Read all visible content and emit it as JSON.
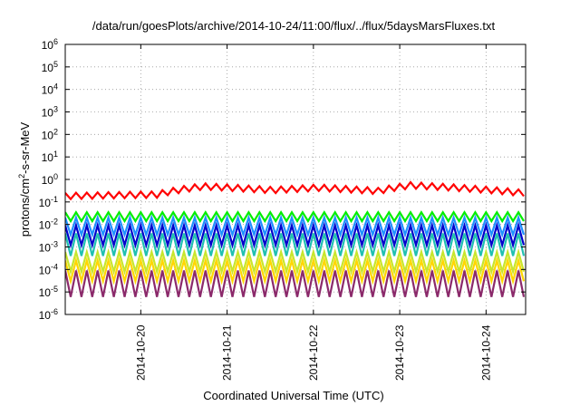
{
  "chart_data": {
    "type": "line",
    "title": "/data/run/goesPlots/archive/2014-10-24/11:00/flux/../flux/5daysMarsFluxes.txt",
    "xlabel": "Coordinated Universal Time (UTC)",
    "ylabel": {
      "prefix": "protons/cm",
      "sup": "2",
      "suffix": "-s-sr-MeV"
    },
    "y_scale": "log",
    "y_range_exp": [
      -6,
      6
    ],
    "y_ticks": [
      {
        "base": "10",
        "exp": "6",
        "e": 6
      },
      {
        "base": "10",
        "exp": "5",
        "e": 5
      },
      {
        "base": "10",
        "exp": "4",
        "e": 4
      },
      {
        "base": "10",
        "exp": "3",
        "e": 3
      },
      {
        "base": "10",
        "exp": "2",
        "e": 2
      },
      {
        "base": "10",
        "exp": "1",
        "e": 1
      },
      {
        "base": "10",
        "exp": "0",
        "e": 0
      },
      {
        "base": "10",
        "exp": "-1",
        "e": -1
      },
      {
        "base": "10",
        "exp": "-2",
        "e": -2
      },
      {
        "base": "10",
        "exp": "-3",
        "e": -3
      },
      {
        "base": "10",
        "exp": "-4",
        "e": -4
      },
      {
        "base": "10",
        "exp": "-5",
        "e": -5
      },
      {
        "base": "10",
        "exp": "-6",
        "e": -6
      }
    ],
    "x_range_days": [
      "2014-10-19T03:00",
      "2014-10-24T11:00"
    ],
    "x_ticks": [
      {
        "label": "2014-10-20",
        "date": "2014-10-20T00:00"
      },
      {
        "label": "2014-10-21",
        "date": "2014-10-21T00:00"
      },
      {
        "label": "2014-10-22",
        "date": "2014-10-22T00:00"
      },
      {
        "label": "2014-10-23",
        "date": "2014-10-23T00:00"
      },
      {
        "label": "2014-10-24",
        "date": "2014-10-24T00:00"
      }
    ],
    "grid": true,
    "cycle_hours": 3,
    "series": [
      {
        "color": "#ff0000",
        "width": 2.2,
        "low": 0.22,
        "high": 0.42,
        "trend": [
          [
            0,
            0.3
          ],
          [
            0.2,
            0.35
          ],
          [
            0.3,
            0.8
          ],
          [
            0.45,
            0.55
          ],
          [
            0.55,
            0.7
          ],
          [
            0.68,
            0.5
          ],
          [
            0.75,
            0.9
          ],
          [
            0.9,
            0.6
          ],
          [
            1,
            0.4
          ]
        ]
      },
      {
        "color": "#00ee00",
        "width": 2.2,
        "low": 0.014,
        "high": 0.035
      },
      {
        "color": "#1e90ff",
        "width": 2.2,
        "low": 0.0035,
        "high": 0.02
      },
      {
        "color": "#0000cc",
        "width": 2.2,
        "low": 0.0012,
        "high": 0.009
      },
      {
        "color": "#20c0b0",
        "width": 2.2,
        "low": 0.0004,
        "high": 0.004
      },
      {
        "color": "#c8e62c",
        "width": 2.2,
        "low": 8e-05,
        "high": 0.0006
      },
      {
        "color": "#ffd700",
        "width": 2.2,
        "low": 3e-05,
        "high": 0.00025
      },
      {
        "color": "#8b2a6b",
        "width": 2.2,
        "low": 6e-06,
        "high": 9e-05
      }
    ]
  }
}
